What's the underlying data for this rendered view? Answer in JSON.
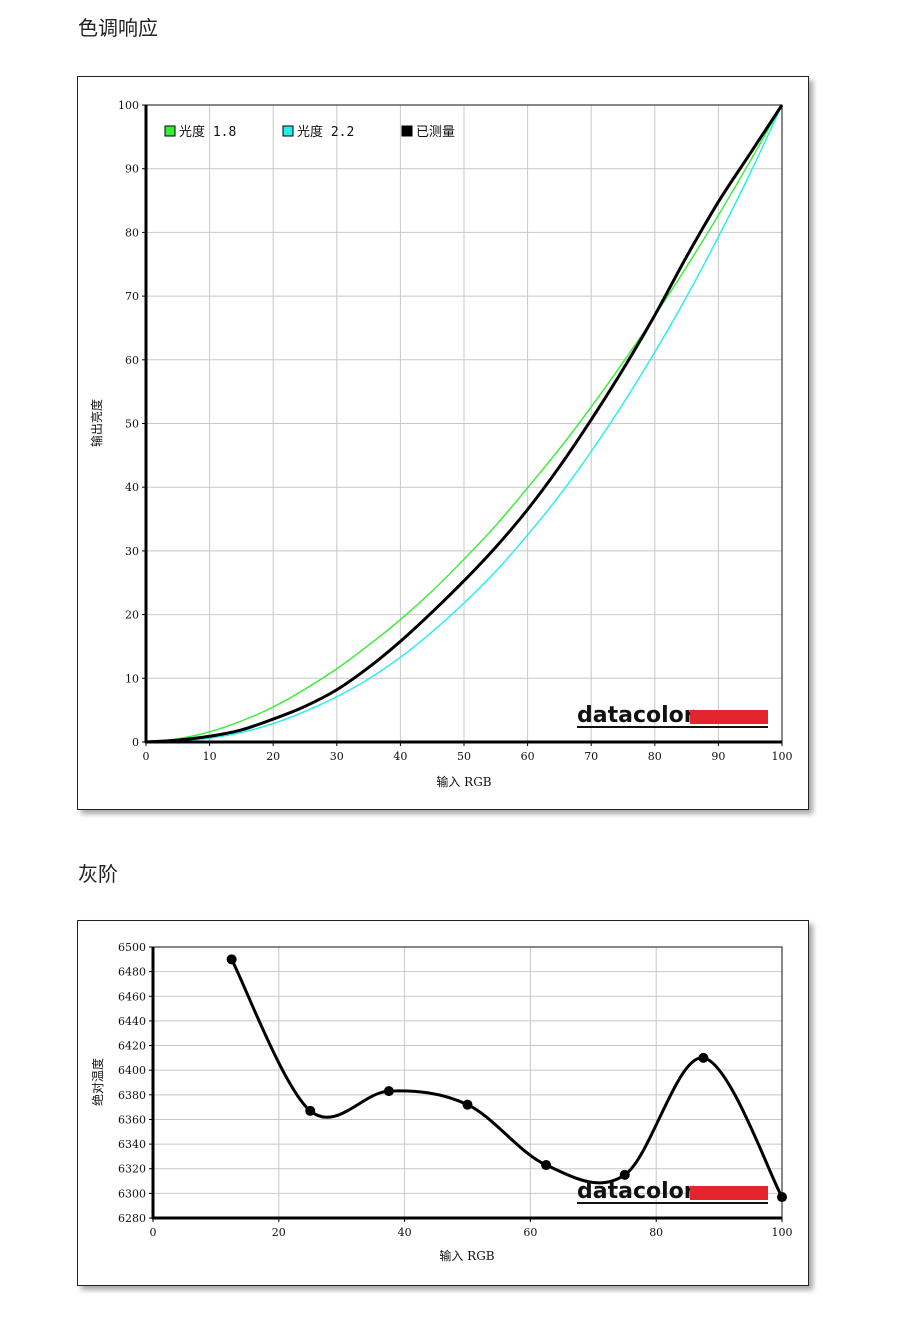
{
  "sections": {
    "tone_title": "色调响应",
    "gray_title": "灰阶"
  },
  "colors": {
    "gamma18": "#33ee33",
    "gamma22": "#22eeee",
    "measured": "#000000",
    "brand_red": "#e3262e",
    "grid": "#c8c8c8"
  },
  "brand": {
    "name": "datacolor"
  },
  "chart_data": [
    {
      "type": "line",
      "xlabel": "输入 RGB",
      "ylabel": "输出亮度",
      "xlim": [
        0,
        100
      ],
      "ylim": [
        0,
        100
      ],
      "xticks": [
        0,
        10,
        20,
        30,
        40,
        50,
        60,
        70,
        80,
        90,
        100
      ],
      "yticks": [
        0,
        10,
        20,
        30,
        40,
        50,
        60,
        70,
        80,
        90,
        100
      ],
      "grid": true,
      "legend_position": "top-left",
      "series": [
        {
          "name": "光度 1.8",
          "color": "#33ee33",
          "x": [
            0,
            5,
            10,
            15,
            20,
            25,
            30,
            35,
            40,
            45,
            50,
            55,
            60,
            65,
            70,
            75,
            80,
            85,
            90,
            95,
            100
          ],
          "y": [
            0,
            0.5,
            1.6,
            3.3,
            5.5,
            8.3,
            11.5,
            15.2,
            19.2,
            23.7,
            28.7,
            34.0,
            39.9,
            46.0,
            52.6,
            59.6,
            66.9,
            74.6,
            82.7,
            91.2,
            100
          ]
        },
        {
          "name": "光度 2.2",
          "color": "#22eeee",
          "x": [
            0,
            5,
            10,
            15,
            20,
            25,
            30,
            35,
            40,
            45,
            50,
            55,
            60,
            65,
            70,
            75,
            80,
            85,
            90,
            95,
            100
          ],
          "y": [
            0,
            0.1,
            0.6,
            1.5,
            2.9,
            4.8,
            7.1,
            9.9,
            13.3,
            17.3,
            21.8,
            26.8,
            32.5,
            38.7,
            45.6,
            53.1,
            61.2,
            69.9,
            79.3,
            89.3,
            100
          ]
        },
        {
          "name": "已测量",
          "color": "#000000",
          "x": [
            0,
            5,
            10,
            15,
            20,
            25,
            30,
            35,
            40,
            45,
            50,
            55,
            60,
            65,
            70,
            75,
            80,
            85,
            90,
            95,
            100
          ],
          "y": [
            0,
            0.3,
            0.9,
            1.9,
            3.6,
            5.6,
            8.2,
            11.7,
            15.8,
            20.4,
            25.3,
            30.6,
            36.5,
            43.2,
            50.6,
            58.5,
            67.0,
            76.2,
            84.8,
            92.4,
            100
          ]
        }
      ]
    },
    {
      "type": "line",
      "xlabel": "输入 RGB",
      "ylabel": "绝对温度",
      "xlim": [
        0,
        100
      ],
      "ylim": [
        6280,
        6500
      ],
      "xticks": [
        0,
        20,
        40,
        60,
        80,
        100
      ],
      "yticks": [
        6280,
        6300,
        6320,
        6340,
        6360,
        6380,
        6400,
        6420,
        6440,
        6460,
        6480,
        6500
      ],
      "grid": true,
      "series": [
        {
          "color": "#000000",
          "x": [
            12.5,
            25,
            37.5,
            50,
            62.5,
            75,
            87.5,
            100
          ],
          "y": [
            6490,
            6367,
            6383,
            6372,
            6323,
            6315,
            6410,
            6297
          ]
        }
      ]
    }
  ]
}
